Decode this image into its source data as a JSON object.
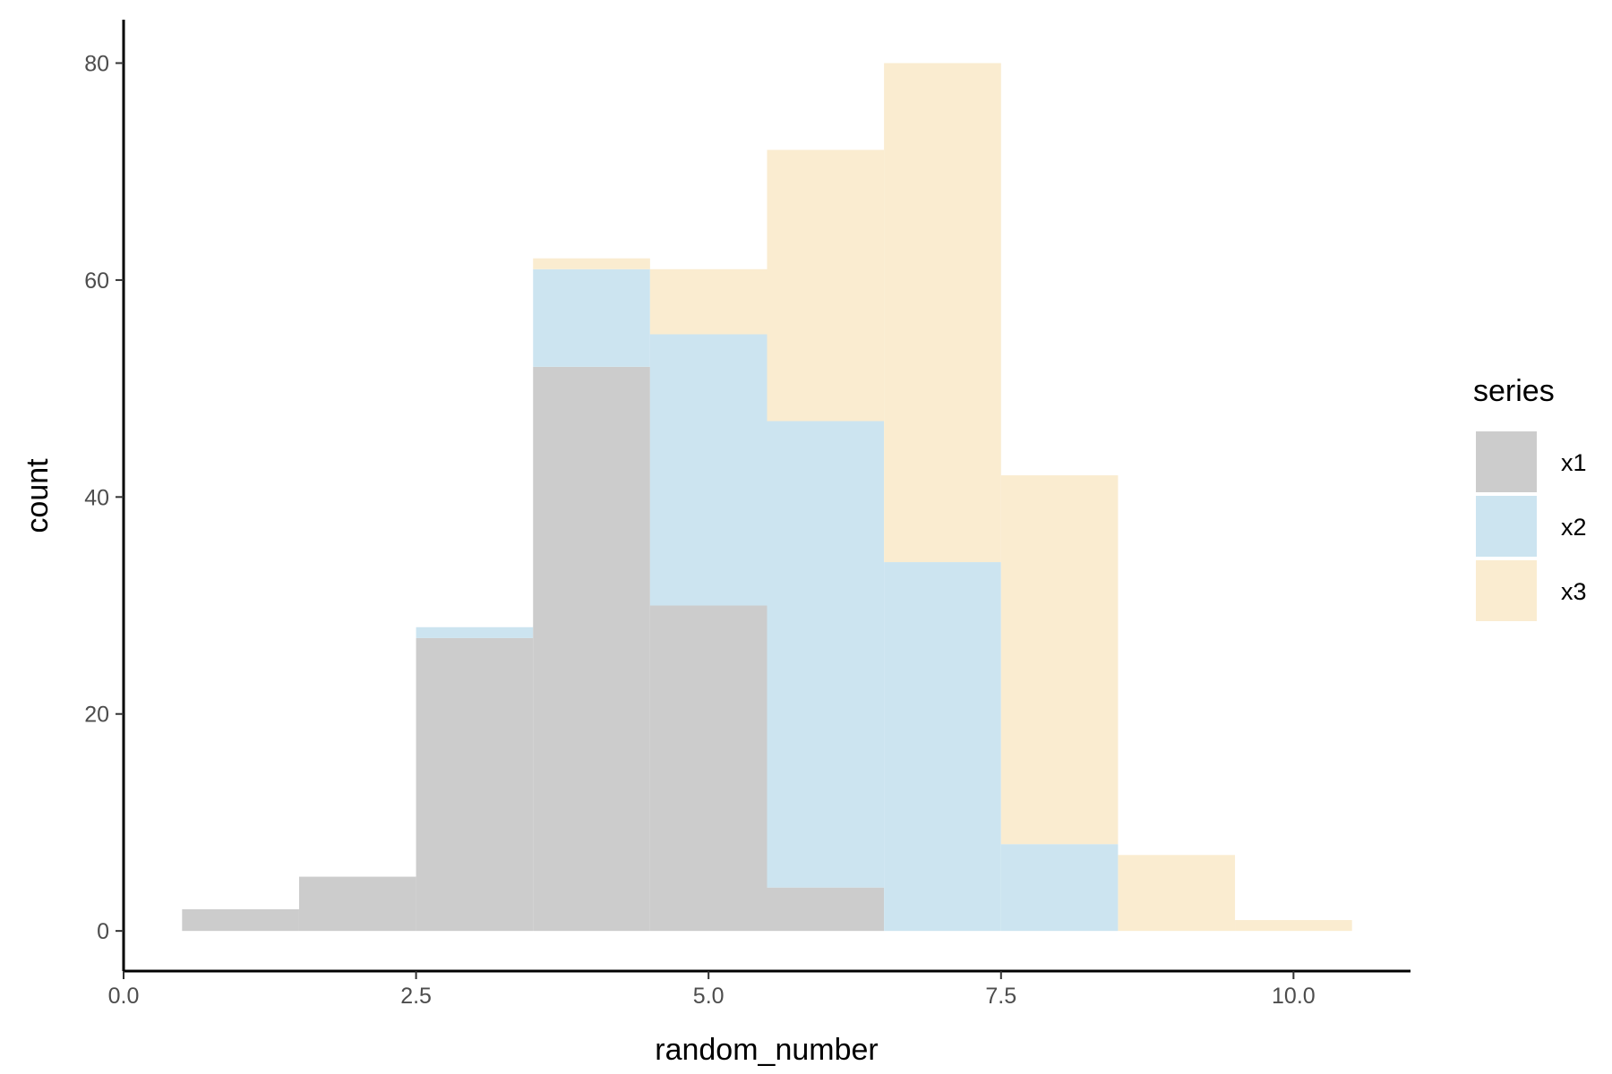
{
  "chart_data": {
    "type": "bar",
    "subtype": "stacked-histogram",
    "xlabel": "random_number",
    "ylabel": "count",
    "xlim": [
      0,
      11
    ],
    "ylim": [
      -3.7,
      84
    ],
    "x_ticks": [
      0.0,
      2.5,
      5.0,
      7.5,
      10.0
    ],
    "x_tick_labels": [
      "0.0",
      "2.5",
      "5.0",
      "7.5",
      "10.0"
    ],
    "y_ticks": [
      0,
      20,
      40,
      60,
      80
    ],
    "y_tick_labels": [
      "0",
      "20",
      "40",
      "60",
      "80"
    ],
    "bin_width": 1,
    "bin_centers": [
      1,
      2,
      3,
      4,
      5,
      6,
      7,
      8,
      9,
      10
    ],
    "series": [
      {
        "name": "x1",
        "color": "#cccccc",
        "values": [
          2,
          5,
          27,
          52,
          30,
          4,
          0,
          0,
          0,
          0
        ]
      },
      {
        "name": "x2",
        "color": "#cce4f0",
        "values": [
          0,
          0,
          1,
          9,
          25,
          43,
          34,
          8,
          0,
          0
        ]
      },
      {
        "name": "x3",
        "color": "#faecd0",
        "values": [
          0,
          0,
          0,
          1,
          6,
          25,
          46,
          34,
          7,
          1
        ]
      }
    ],
    "grid": false,
    "legend": {
      "title": "series",
      "position": "right"
    }
  }
}
